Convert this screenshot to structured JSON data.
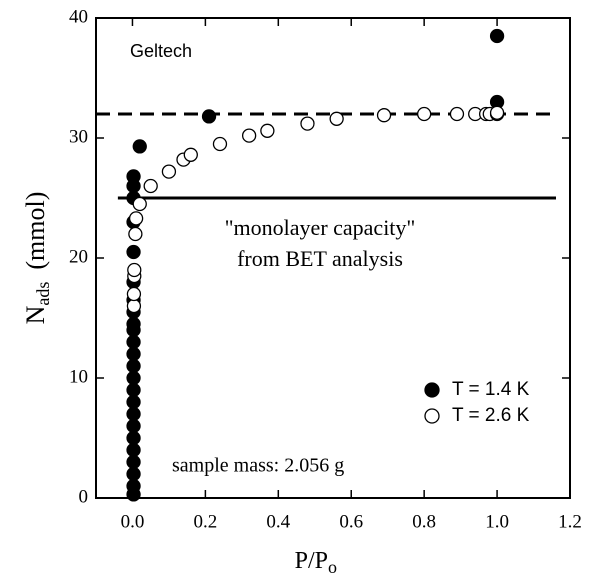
{
  "chart_data": {
    "type": "scatter",
    "annotations": [
      "Geltech",
      "\"monolayer capacity\"",
      "from BET analysis",
      "sample mass: 2.056 g"
    ],
    "x_label": {
      "main": "P/P",
      "sub": "o"
    },
    "y_label": {
      "main": "N",
      "sub": "ads",
      "unit": "(mmol)"
    },
    "xlim": [
      -0.1,
      1.2
    ],
    "ylim": [
      0,
      40
    ],
    "xticks": [
      {
        "value": 0,
        "label": "0.0"
      },
      0.2,
      0.4,
      0.6,
      0.8,
      {
        "value": 1,
        "label": "1.0"
      },
      1.2
    ],
    "yticks": [
      0,
      10,
      20,
      30,
      40
    ],
    "reference_lines": [
      {
        "y": 32,
        "style": "dashed"
      },
      {
        "y": 25,
        "style": "solid"
      }
    ],
    "legend": "lower right",
    "series": [
      {
        "name": "T = 1.4 K",
        "color": "#000000",
        "filled": true,
        "x": [
          0.003,
          0.003,
          0.003,
          0.003,
          0.003,
          0.003,
          0.003,
          0.003,
          0.003,
          0.003,
          0.003,
          0.003,
          0.003,
          0.003,
          0.003,
          0.003,
          0.003,
          0.003,
          0.003,
          0.003,
          0.003,
          0.003,
          0.003,
          0.003,
          0.02,
          0.21,
          1.0,
          1.0
        ],
        "values": [
          0.3,
          1,
          2,
          3,
          4,
          5,
          6,
          7,
          8,
          9,
          10,
          11,
          12,
          13,
          14,
          14.5,
          15.5,
          16.5,
          18,
          20.5,
          23,
          25,
          26,
          26.8,
          29.3,
          31.8,
          33,
          38.5
        ]
      },
      {
        "name": "T = 2.6 K",
        "color": "#000000",
        "filled": false,
        "x": [
          0.004,
          0.004,
          0.005,
          0.005,
          0.008,
          0.01,
          0.02,
          0.05,
          0.1,
          0.14,
          0.16,
          0.24,
          0.32,
          0.37,
          0.48,
          0.56,
          0.69,
          0.8,
          0.89,
          0.94,
          0.97,
          0.98,
          1.0,
          1.0
        ],
        "values": [
          16,
          17,
          18.5,
          19,
          22,
          23.3,
          24.5,
          26,
          27.2,
          28.2,
          28.6,
          29.5,
          30.2,
          30.6,
          31.2,
          31.6,
          31.9,
          32,
          32,
          32,
          32,
          32,
          32,
          32.1
        ]
      }
    ]
  }
}
